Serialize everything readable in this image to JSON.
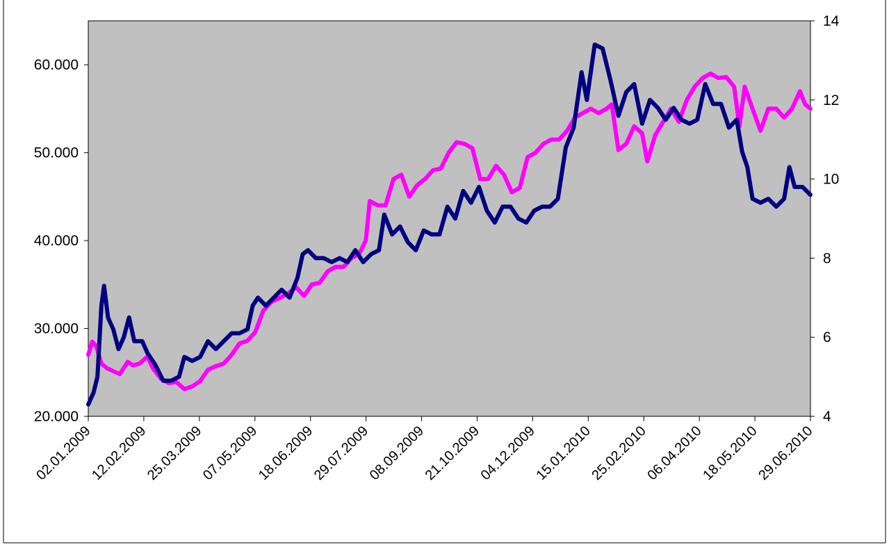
{
  "chart_data": {
    "type": "line",
    "title": "",
    "xlabel": "",
    "ylabel_left": "",
    "ylabel_right": "",
    "x_tick_labels": [
      "02.01.2009",
      "12.02.2009",
      "25.03.2009",
      "07.05.2009",
      "18.06.2009",
      "29.07.2009",
      "08.09.2009",
      "21.10.2009",
      "04.12.2009",
      "15.01.2010",
      "25.02.2010",
      "06.04.2010",
      "18.05.2010",
      "29.06.2010"
    ],
    "y_left_ticks": [
      "20.000",
      "30.000",
      "40.000",
      "50.000",
      "60.000"
    ],
    "y_left_tick_values": [
      20000,
      30000,
      40000,
      50000,
      60000
    ],
    "y_left_range": [
      20000,
      65000
    ],
    "y_right_ticks": [
      "4",
      "6",
      "8",
      "10",
      "12",
      "14"
    ],
    "y_right_tick_values": [
      4,
      6,
      8,
      10,
      12,
      14
    ],
    "y_right_range": [
      4,
      14
    ],
    "x_range": [
      "2009-01-02",
      "2010-07-05"
    ],
    "plot_background": "#c0c0c0",
    "grid": false,
    "legend": "none",
    "series": [
      {
        "axis": "left",
        "color": "#ff00ff",
        "points": [
          [
            "2009-01-02",
            27000
          ],
          [
            "2009-01-05",
            28500
          ],
          [
            "2009-01-08",
            28000
          ],
          [
            "2009-01-12",
            26000
          ],
          [
            "2009-01-16",
            25500
          ],
          [
            "2009-01-20",
            25200
          ],
          [
            "2009-01-26",
            24800
          ],
          [
            "2009-02-01",
            26200
          ],
          [
            "2009-02-05",
            25800
          ],
          [
            "2009-02-10",
            26000
          ],
          [
            "2009-02-16",
            26800
          ],
          [
            "2009-02-20",
            25500
          ],
          [
            "2009-02-26",
            24300
          ],
          [
            "2009-03-04",
            23800
          ],
          [
            "2009-03-10",
            23900
          ],
          [
            "2009-03-16",
            23100
          ],
          [
            "2009-03-22",
            23400
          ],
          [
            "2009-03-28",
            24000
          ],
          [
            "2009-04-03",
            25300
          ],
          [
            "2009-04-09",
            25700
          ],
          [
            "2009-04-15",
            26000
          ],
          [
            "2009-04-21",
            27000
          ],
          [
            "2009-04-27",
            28300
          ],
          [
            "2009-05-03",
            28600
          ],
          [
            "2009-05-09",
            29600
          ],
          [
            "2009-05-15",
            32000
          ],
          [
            "2009-05-21",
            33000
          ],
          [
            "2009-05-28",
            33500
          ],
          [
            "2009-06-03",
            34000
          ],
          [
            "2009-06-09",
            34700
          ],
          [
            "2009-06-15",
            33700
          ],
          [
            "2009-06-21",
            35000
          ],
          [
            "2009-06-27",
            35200
          ],
          [
            "2009-07-03",
            36500
          ],
          [
            "2009-07-09",
            37000
          ],
          [
            "2009-07-15",
            37000
          ],
          [
            "2009-07-21",
            38000
          ],
          [
            "2009-07-27",
            38500
          ],
          [
            "2009-08-01",
            40000
          ],
          [
            "2009-08-04",
            44500
          ],
          [
            "2009-08-10",
            44000
          ],
          [
            "2009-08-16",
            44000
          ],
          [
            "2009-08-22",
            47000
          ],
          [
            "2009-08-28",
            47500
          ],
          [
            "2009-09-03",
            45000
          ],
          [
            "2009-09-09",
            46300
          ],
          [
            "2009-09-15",
            47000
          ],
          [
            "2009-09-21",
            48000
          ],
          [
            "2009-09-27",
            48200
          ],
          [
            "2009-10-03",
            50000
          ],
          [
            "2009-10-09",
            51200
          ],
          [
            "2009-10-15",
            51000
          ],
          [
            "2009-10-21",
            50500
          ],
          [
            "2009-10-27",
            47000
          ],
          [
            "2009-11-02",
            47000
          ],
          [
            "2009-11-08",
            48500
          ],
          [
            "2009-11-14",
            47500
          ],
          [
            "2009-11-20",
            45500
          ],
          [
            "2009-11-26",
            46000
          ],
          [
            "2009-12-02",
            49500
          ],
          [
            "2009-12-08",
            50000
          ],
          [
            "2009-12-14",
            51000
          ],
          [
            "2009-12-20",
            51500
          ],
          [
            "2009-12-26",
            51500
          ],
          [
            "2010-01-01",
            52500
          ],
          [
            "2010-01-07",
            54000
          ],
          [
            "2010-01-13",
            54500
          ],
          [
            "2010-01-19",
            55000
          ],
          [
            "2010-01-25",
            54500
          ],
          [
            "2010-01-31",
            55000
          ],
          [
            "2010-02-04",
            55500
          ],
          [
            "2010-02-09",
            50300
          ],
          [
            "2010-02-15",
            51000
          ],
          [
            "2010-02-21",
            53000
          ],
          [
            "2010-02-27",
            52200
          ],
          [
            "2010-03-03",
            49000
          ],
          [
            "2010-03-09",
            52000
          ],
          [
            "2010-03-15",
            53500
          ],
          [
            "2010-03-21",
            55000
          ],
          [
            "2010-03-27",
            53500
          ],
          [
            "2010-04-02",
            56000
          ],
          [
            "2010-04-08",
            57500
          ],
          [
            "2010-04-14",
            58500
          ],
          [
            "2010-04-20",
            59000
          ],
          [
            "2010-04-26",
            58500
          ],
          [
            "2010-05-02",
            58600
          ],
          [
            "2010-05-08",
            57500
          ],
          [
            "2010-05-12",
            53000
          ],
          [
            "2010-05-16",
            57500
          ],
          [
            "2010-05-22",
            55000
          ],
          [
            "2010-05-28",
            52500
          ],
          [
            "2010-06-03",
            55000
          ],
          [
            "2010-06-09",
            55000
          ],
          [
            "2010-06-15",
            54000
          ],
          [
            "2010-06-21",
            55000
          ],
          [
            "2010-06-27",
            57000
          ],
          [
            "2010-07-01",
            55500
          ],
          [
            "2010-07-05",
            55000
          ]
        ]
      },
      {
        "axis": "right",
        "color": "#000080",
        "points": [
          [
            "2009-01-02",
            4.3
          ],
          [
            "2009-01-06",
            4.6
          ],
          [
            "2009-01-09",
            5.0
          ],
          [
            "2009-01-12",
            6.8
          ],
          [
            "2009-01-14",
            7.3
          ],
          [
            "2009-01-17",
            6.5
          ],
          [
            "2009-01-21",
            6.2
          ],
          [
            "2009-01-25",
            5.7
          ],
          [
            "2009-01-29",
            6.0
          ],
          [
            "2009-02-02",
            6.5
          ],
          [
            "2009-02-06",
            5.9
          ],
          [
            "2009-02-12",
            5.9
          ],
          [
            "2009-02-16",
            5.6
          ],
          [
            "2009-02-22",
            5.3
          ],
          [
            "2009-02-28",
            4.9
          ],
          [
            "2009-03-06",
            4.9
          ],
          [
            "2009-03-12",
            5.0
          ],
          [
            "2009-03-16",
            5.5
          ],
          [
            "2009-03-22",
            5.4
          ],
          [
            "2009-03-28",
            5.5
          ],
          [
            "2009-04-03",
            5.9
          ],
          [
            "2009-04-09",
            5.7
          ],
          [
            "2009-04-15",
            5.9
          ],
          [
            "2009-04-21",
            6.1
          ],
          [
            "2009-04-27",
            6.1
          ],
          [
            "2009-05-03",
            6.2
          ],
          [
            "2009-05-07",
            6.8
          ],
          [
            "2009-05-11",
            7.0
          ],
          [
            "2009-05-17",
            6.8
          ],
          [
            "2009-05-23",
            7.0
          ],
          [
            "2009-05-29",
            7.2
          ],
          [
            "2009-06-04",
            7.0
          ],
          [
            "2009-06-10",
            7.5
          ],
          [
            "2009-06-14",
            8.1
          ],
          [
            "2009-06-18",
            8.2
          ],
          [
            "2009-06-24",
            8.0
          ],
          [
            "2009-06-30",
            8.0
          ],
          [
            "2009-07-06",
            7.9
          ],
          [
            "2009-07-12",
            8.0
          ],
          [
            "2009-07-18",
            7.9
          ],
          [
            "2009-07-24",
            8.2
          ],
          [
            "2009-07-30",
            7.9
          ],
          [
            "2009-08-05",
            8.1
          ],
          [
            "2009-08-11",
            8.2
          ],
          [
            "2009-08-15",
            9.1
          ],
          [
            "2009-08-21",
            8.6
          ],
          [
            "2009-08-27",
            8.8
          ],
          [
            "2009-09-02",
            8.4
          ],
          [
            "2009-09-08",
            8.2
          ],
          [
            "2009-09-14",
            8.7
          ],
          [
            "2009-09-20",
            8.6
          ],
          [
            "2009-09-26",
            8.6
          ],
          [
            "2009-10-02",
            9.3
          ],
          [
            "2009-10-08",
            9.0
          ],
          [
            "2009-10-14",
            9.7
          ],
          [
            "2009-10-20",
            9.4
          ],
          [
            "2009-10-26",
            9.8
          ],
          [
            "2009-11-01",
            9.2
          ],
          [
            "2009-11-07",
            8.9
          ],
          [
            "2009-11-13",
            9.3
          ],
          [
            "2009-11-19",
            9.3
          ],
          [
            "2009-11-25",
            9.0
          ],
          [
            "2009-12-01",
            8.9
          ],
          [
            "2009-12-07",
            9.2
          ],
          [
            "2009-12-13",
            9.3
          ],
          [
            "2009-12-19",
            9.3
          ],
          [
            "2009-12-25",
            9.5
          ],
          [
            "2009-12-31",
            10.8
          ],
          [
            "2010-01-06",
            11.3
          ],
          [
            "2010-01-12",
            12.7
          ],
          [
            "2010-01-16",
            12.0
          ],
          [
            "2010-01-22",
            13.4
          ],
          [
            "2010-01-28",
            13.3
          ],
          [
            "2010-02-03",
            12.5
          ],
          [
            "2010-02-09",
            11.6
          ],
          [
            "2010-02-15",
            12.2
          ],
          [
            "2010-02-21",
            12.4
          ],
          [
            "2010-02-27",
            11.4
          ],
          [
            "2010-03-05",
            12.0
          ],
          [
            "2010-03-11",
            11.8
          ],
          [
            "2010-03-17",
            11.5
          ],
          [
            "2010-03-23",
            11.8
          ],
          [
            "2010-03-29",
            11.5
          ],
          [
            "2010-04-04",
            11.4
          ],
          [
            "2010-04-10",
            11.5
          ],
          [
            "2010-04-16",
            12.4
          ],
          [
            "2010-04-22",
            11.9
          ],
          [
            "2010-04-28",
            11.9
          ],
          [
            "2010-05-04",
            11.3
          ],
          [
            "2010-05-10",
            11.5
          ],
          [
            "2010-05-14",
            10.7
          ],
          [
            "2010-05-18",
            10.3
          ],
          [
            "2010-05-22",
            9.5
          ],
          [
            "2010-05-28",
            9.4
          ],
          [
            "2010-06-03",
            9.5
          ],
          [
            "2010-06-09",
            9.3
          ],
          [
            "2010-06-15",
            9.5
          ],
          [
            "2010-06-19",
            10.3
          ],
          [
            "2010-06-23",
            9.8
          ],
          [
            "2010-06-29",
            9.8
          ],
          [
            "2010-07-05",
            9.6
          ]
        ]
      }
    ]
  }
}
